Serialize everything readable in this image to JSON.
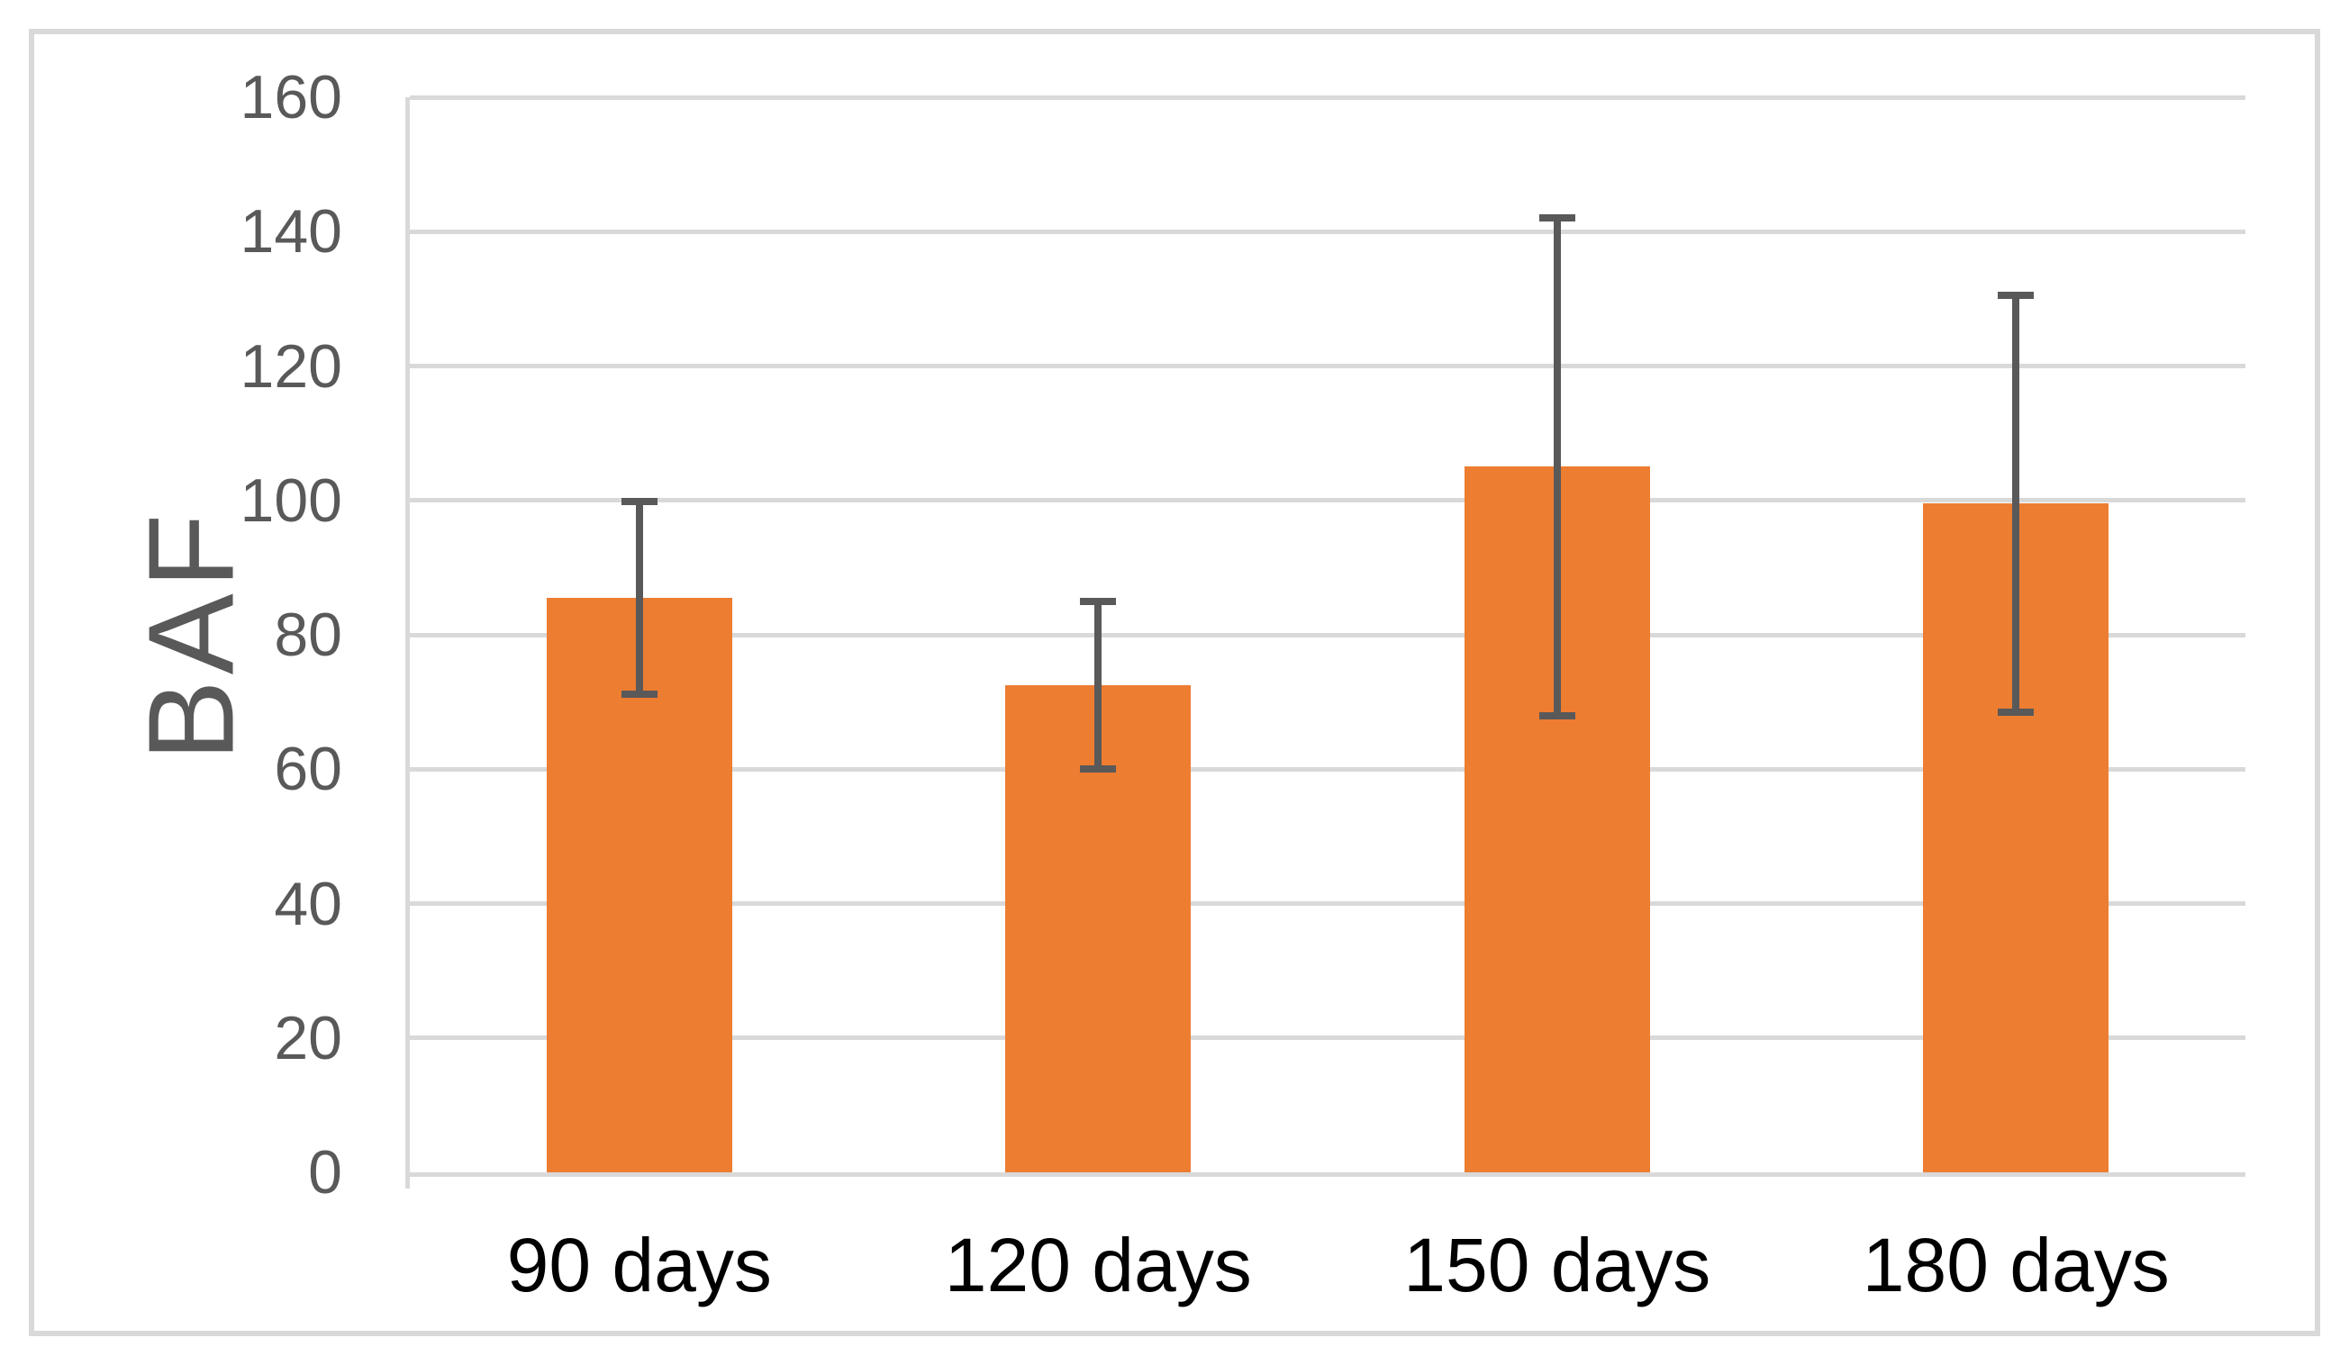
{
  "figure": {
    "background_color": "#ffffff",
    "border_color": "#d9d9d9"
  },
  "chart_data": {
    "type": "bar",
    "title": "",
    "xlabel": "",
    "ylabel": "BAF",
    "categories": [
      "90 days",
      "120 days",
      "150 days",
      "180 days"
    ],
    "values": [
      85.5,
      72.5,
      105,
      99.5
    ],
    "error_bars": [
      14.4,
      12.5,
      37,
      31
    ],
    "ylim": [
      0,
      160
    ],
    "yticks": [
      0,
      20,
      40,
      60,
      80,
      100,
      120,
      140,
      160
    ],
    "grid": "horizontal",
    "legend": "none",
    "bar_color": "#ED7D31",
    "error_bar_color": "#595959",
    "gridline_color": "#D9D9D9",
    "axis_line_color": "#D9D9D9",
    "y_tick_label_color": "#595959",
    "x_tick_label_color": "#000000"
  }
}
